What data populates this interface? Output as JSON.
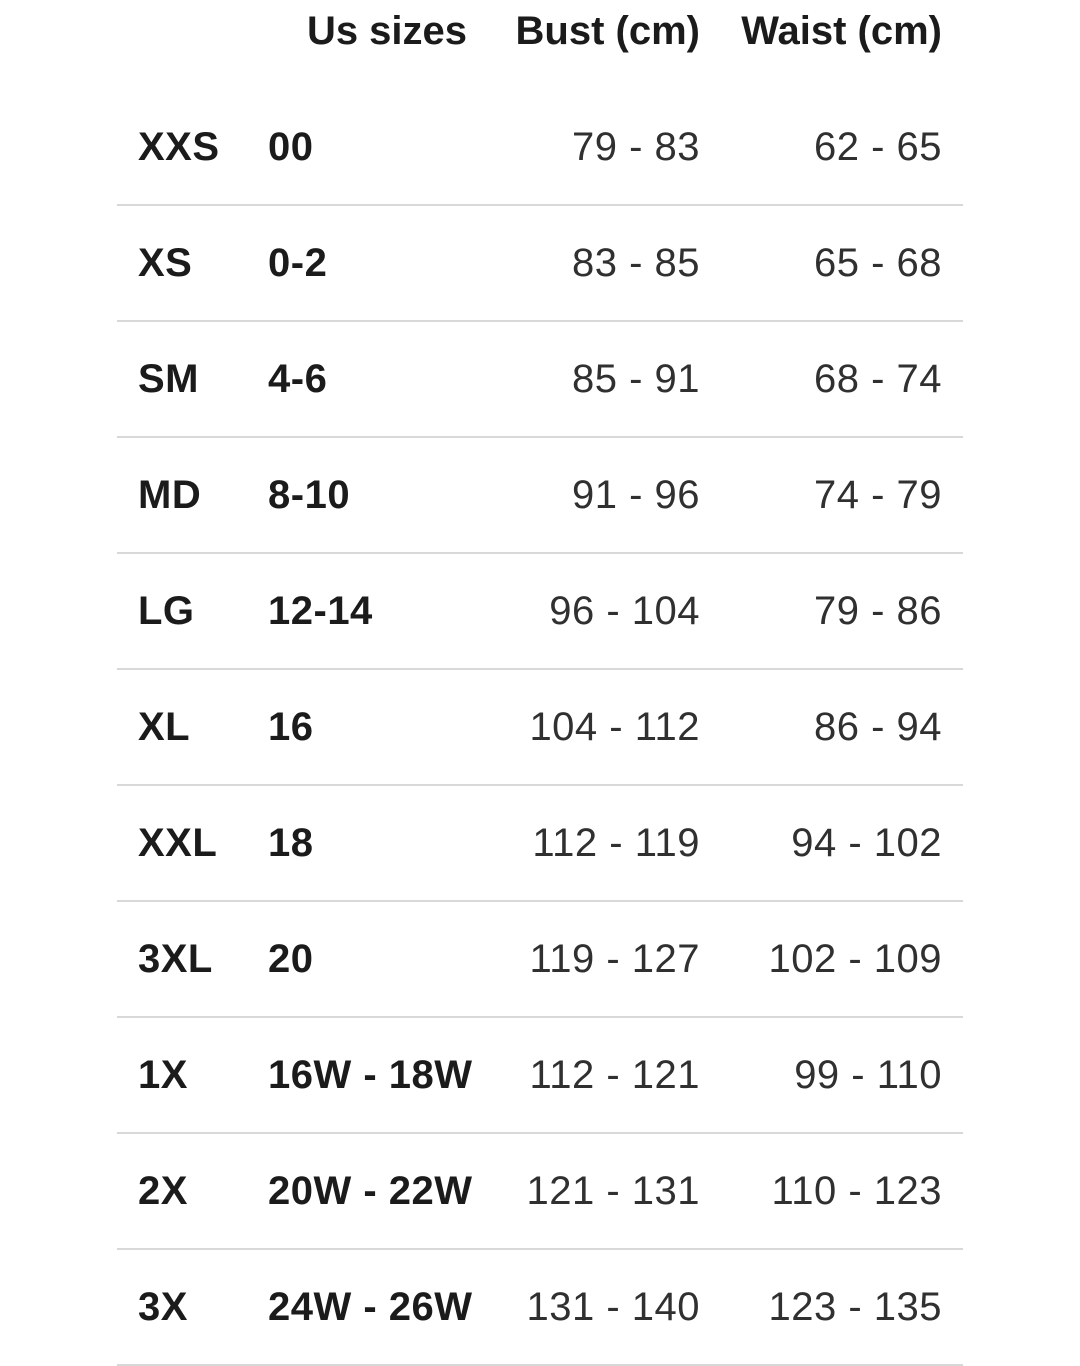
{
  "colors": {
    "background": "#ffffff",
    "divider": "#d8d8d8",
    "text_primary": "#1b1b1b",
    "text_secondary": "#303030"
  },
  "table": {
    "headers": {
      "size": "",
      "us_sizes": "Us sizes",
      "bust": "Bust (cm)",
      "waist": "Waist (cm)"
    },
    "rows": [
      {
        "size": "XXS",
        "us": "00",
        "bust": "79 - 83",
        "waist": "62 - 65"
      },
      {
        "size": "XS",
        "us": "0-2",
        "bust": "83 - 85",
        "waist": "65 - 68"
      },
      {
        "size": "SM",
        "us": "4-6",
        "bust": "85 - 91",
        "waist": "68 - 74"
      },
      {
        "size": "MD",
        "us": "8-10",
        "bust": "91 - 96",
        "waist": "74 - 79"
      },
      {
        "size": "LG",
        "us": "12-14",
        "bust": "96 - 104",
        "waist": "79 - 86"
      },
      {
        "size": "XL",
        "us": "16",
        "bust": "104 - 112",
        "waist": "86 - 94"
      },
      {
        "size": "XXL",
        "us": "18",
        "bust": "112 - 119",
        "waist": "94 - 102"
      },
      {
        "size": "3XL",
        "us": "20",
        "bust": "119 - 127",
        "waist": "102 - 109"
      },
      {
        "size": "1X",
        "us": "16W - 18W",
        "bust": "112 - 121",
        "waist": "99 - 110"
      },
      {
        "size": "2X",
        "us": "20W - 22W",
        "bust": "121 - 131",
        "waist": "110 - 123"
      },
      {
        "size": "3X",
        "us": "24W - 26W",
        "bust": "131 - 140",
        "waist": "123 - 135"
      }
    ]
  }
}
